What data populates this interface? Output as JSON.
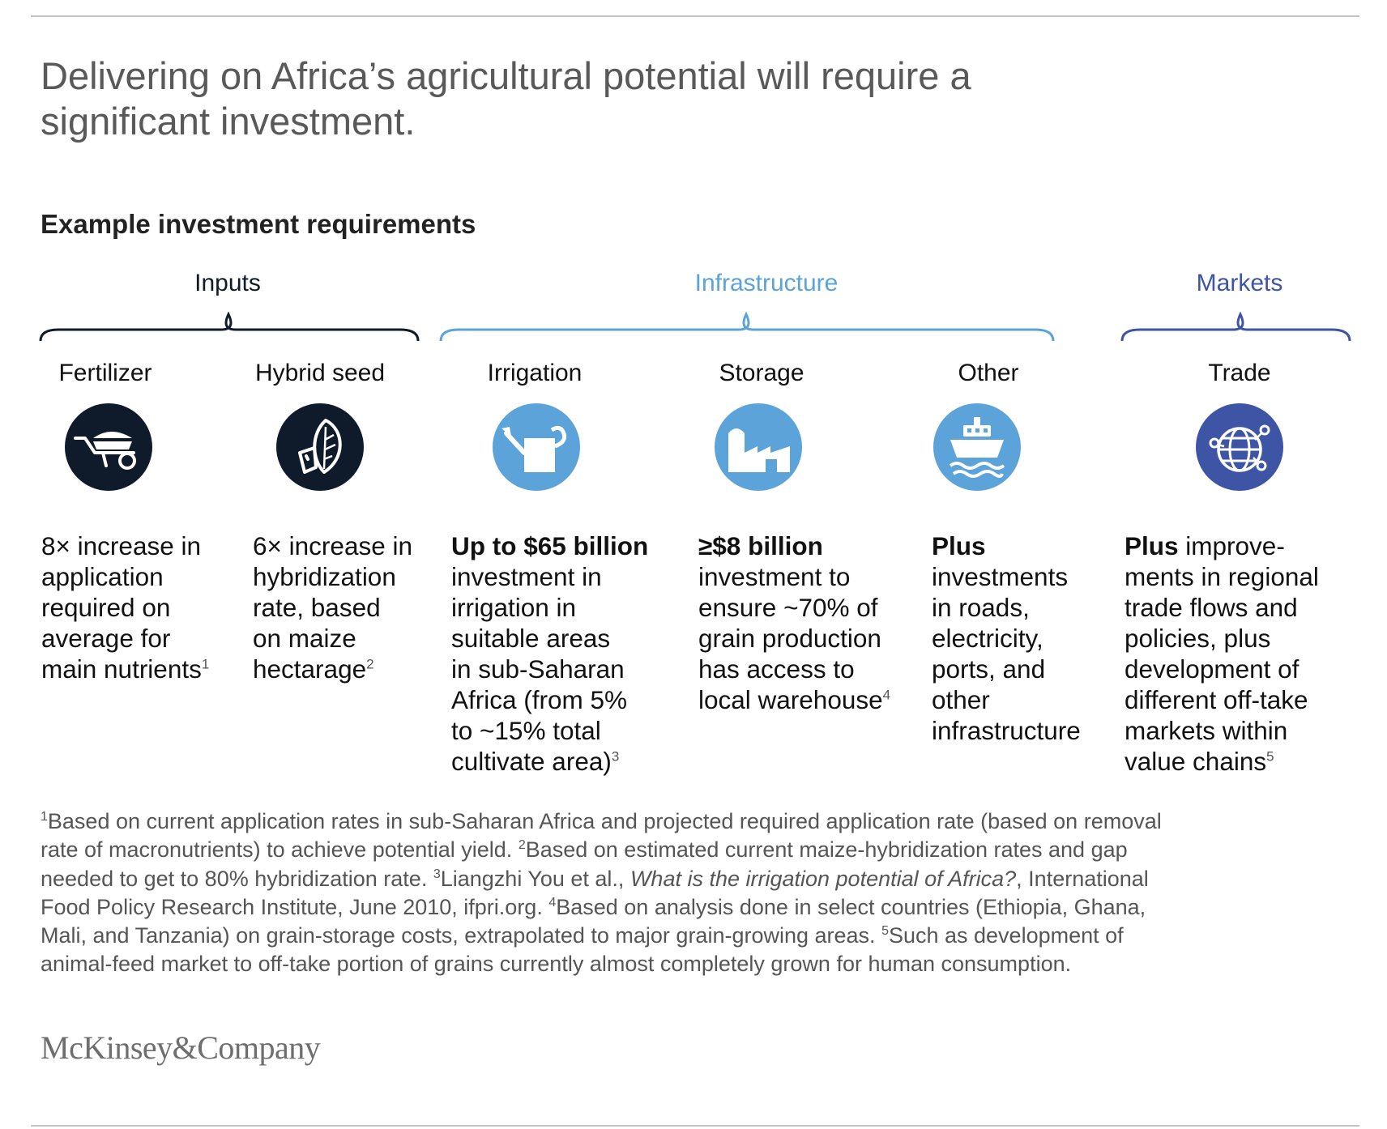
{
  "title": {
    "line1": "Delivering on Africa’s agricultural potential will require a",
    "line2": "significant investment."
  },
  "subtitle": "Example investment requirements",
  "colors": {
    "inputs": "#0f1b2a",
    "infrastructure": "#5ba3d9",
    "markets": "#3e55a5",
    "title_gray": "#595959",
    "footnote_gray": "#555555",
    "rule": "#c4c4c4"
  },
  "categories": [
    {
      "label": "Inputs",
      "color": "#0f1b2a"
    },
    {
      "label": "Infrastructure",
      "color": "#5ba3d9"
    },
    {
      "label": "Markets",
      "color": "#3e55a5"
    }
  ],
  "columns": [
    {
      "title": "Fertilizer",
      "icon": "wheelbarrow-icon",
      "lines": [
        {
          "bold": "",
          "text": "8× increase in"
        },
        {
          "bold": "",
          "text": "application"
        },
        {
          "bold": "",
          "text": "required on"
        },
        {
          "bold": "",
          "text": "average for"
        },
        {
          "bold": "",
          "text": "main nutrients",
          "sup": "1"
        }
      ]
    },
    {
      "title": "Hybrid seed",
      "icon": "seed-leaf-icon",
      "lines": [
        {
          "bold": "",
          "text": "6× increase in"
        },
        {
          "bold": "",
          "text": "hybridization"
        },
        {
          "bold": "",
          "text": "rate, based"
        },
        {
          "bold": "",
          "text": "on maize"
        },
        {
          "bold": "",
          "text": "hectarage",
          "sup": "2"
        }
      ]
    },
    {
      "title": "Irrigation",
      "icon": "watering-can-icon",
      "lines": [
        {
          "bold": "Up to $65 billion",
          "text": ""
        },
        {
          "bold": "",
          "text": "investment in"
        },
        {
          "bold": "",
          "text": "irrigation in"
        },
        {
          "bold": "",
          "text": "suitable areas"
        },
        {
          "bold": "",
          "text": "in sub-Saharan"
        },
        {
          "bold": "",
          "text": "Africa (from 5%"
        },
        {
          "bold": "",
          "text": "to ~15% total"
        },
        {
          "bold": "",
          "text": "cultivate area)",
          "sup": "3"
        }
      ]
    },
    {
      "title": "Storage",
      "icon": "warehouse-silo-icon",
      "lines": [
        {
          "bold": " ≥$8 billion",
          "text": ""
        },
        {
          "bold": "",
          "text": "investment to"
        },
        {
          "bold": "",
          "text": "ensure ~70% of"
        },
        {
          "bold": "",
          "text": "grain production"
        },
        {
          "bold": "",
          "text": "has access to"
        },
        {
          "bold": "",
          "text": "local warehouse",
          "sup": "4"
        }
      ]
    },
    {
      "title": "Other",
      "icon": "ship-icon",
      "lines": [
        {
          "bold": "Plus",
          "text": ""
        },
        {
          "bold": "",
          "text": "investments"
        },
        {
          "bold": "",
          "text": "in roads,"
        },
        {
          "bold": "",
          "text": "electricity,"
        },
        {
          "bold": "",
          "text": "ports, and"
        },
        {
          "bold": "",
          "text": "other"
        },
        {
          "bold": "",
          "text": "infrastructure"
        }
      ]
    },
    {
      "title": "Trade",
      "icon": "globe-network-icon",
      "lines": [
        {
          "bold": "Plus",
          "text": " improve-"
        },
        {
          "bold": "",
          "text": "ments in regional"
        },
        {
          "bold": "",
          "text": "trade flows and"
        },
        {
          "bold": "",
          "text": "policies, plus"
        },
        {
          "bold": "",
          "text": "development of"
        },
        {
          "bold": "",
          "text": "different off-take"
        },
        {
          "bold": "",
          "text": "markets within"
        },
        {
          "bold": "",
          "text": "value chains",
          "sup": "5"
        }
      ]
    }
  ],
  "footnotes": {
    "line1_sup": "1",
    "line1": "Based on current application rates in sub-Saharan Africa and projected required application rate (based on removal",
    "line2": "rate of macronutrients) to achieve potential yield. ",
    "line2_sup": "2",
    "line2b": "Based on estimated current maize-hybridization rates and gap",
    "line3": "needed to get to 80% hybridization rate. ",
    "line3_sup": "3",
    "line3b": "Liangzhi You et al., ",
    "line3_italic": "What is the irrigation potential of Africa?",
    "line3c": ", International",
    "line4": "Food Policy Research Institute, June 2010, ifpri.org. ",
    "line4_sup": "4",
    "line4b": "Based on analysis done in select countries (Ethiopia, Ghana,",
    "line5": "Mali, and Tanzania) on grain-storage costs, extrapolated to major grain-growing areas. ",
    "line5_sup": "5",
    "line5b": "Such as development of",
    "line6": "animal-feed market to off-take portion of grains currently almost completely grown for human consumption."
  },
  "logo": "McKinsey&Company"
}
